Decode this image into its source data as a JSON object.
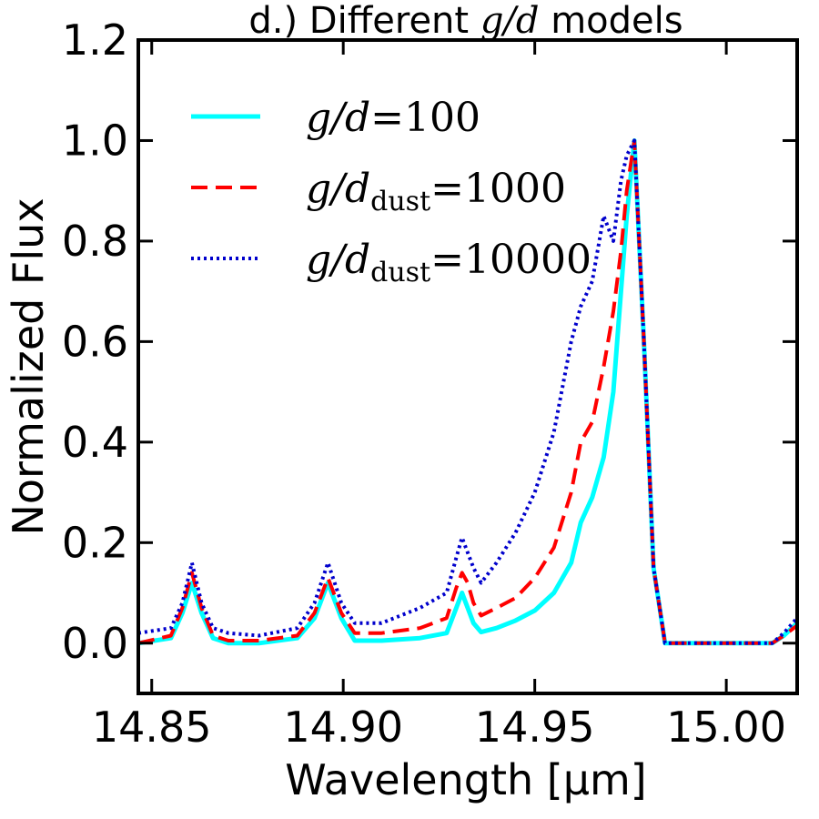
{
  "chart_data": {
    "type": "line",
    "title_prefix": "d.) Different ",
    "title_math": "g/d",
    "title_suffix": " models",
    "xlabel": "Wavelength [μm]",
    "ylabel": "Normalized Flux",
    "xlim": [
      14.8465,
      15.0185
    ],
    "ylim": [
      -0.1,
      1.2
    ],
    "xticks": [
      14.85,
      14.9,
      14.95,
      15.0
    ],
    "xtick_labels": [
      "14.85",
      "14.90",
      "14.95",
      "15.00"
    ],
    "yticks": [
      0.0,
      0.2,
      0.4,
      0.6,
      0.8,
      1.0,
      1.2
    ],
    "ytick_labels": [
      "0.0",
      "0.2",
      "0.4",
      "0.6",
      "0.8",
      "1.0",
      "1.2"
    ],
    "legend_position": "upper-left",
    "series": [
      {
        "name": "g/d = 100",
        "legend_main": "g/d",
        "legend_sub": "",
        "legend_value": "100",
        "color": "#00ffff",
        "style": "solid",
        "x": [
          14.8465,
          14.855,
          14.858,
          14.8605,
          14.863,
          14.866,
          14.87,
          14.878,
          14.888,
          14.8925,
          14.896,
          14.8995,
          14.903,
          14.91,
          14.92,
          14.927,
          14.9295,
          14.931,
          14.9325,
          14.934,
          14.936,
          14.94,
          14.945,
          14.95,
          14.955,
          14.9595,
          14.962,
          14.965,
          14.968,
          14.9705,
          14.9725,
          14.974,
          14.976,
          14.9785,
          14.981,
          14.984,
          14.99,
          15.0,
          15.008,
          15.012,
          15.015,
          15.0185
        ],
        "y": [
          0.0,
          0.01,
          0.06,
          0.12,
          0.06,
          0.01,
          0.0,
          0.0,
          0.01,
          0.05,
          0.12,
          0.05,
          0.005,
          0.005,
          0.01,
          0.02,
          0.07,
          0.1,
          0.07,
          0.04,
          0.022,
          0.03,
          0.045,
          0.065,
          0.1,
          0.16,
          0.24,
          0.29,
          0.37,
          0.5,
          0.7,
          0.85,
          1.0,
          0.6,
          0.15,
          0.0,
          0.0,
          0.0,
          0.0,
          0.0,
          0.015,
          0.04
        ]
      },
      {
        "name": "g/d_dust = 1000",
        "legend_main": "g/d",
        "legend_sub": "dust",
        "legend_value": "1000",
        "color": "#ff0000",
        "style": "dashed",
        "x": [
          14.8465,
          14.855,
          14.858,
          14.8605,
          14.863,
          14.866,
          14.87,
          14.878,
          14.888,
          14.8925,
          14.896,
          14.8995,
          14.903,
          14.91,
          14.92,
          14.927,
          14.9295,
          14.931,
          14.9325,
          14.934,
          14.936,
          14.94,
          14.945,
          14.95,
          14.955,
          14.9595,
          14.962,
          14.965,
          14.968,
          14.9705,
          14.9725,
          14.974,
          14.976,
          14.9785,
          14.981,
          14.984,
          14.99,
          15.0,
          15.008,
          15.012,
          15.015,
          15.0185
        ],
        "y": [
          0.0,
          0.015,
          0.07,
          0.14,
          0.07,
          0.015,
          0.005,
          0.005,
          0.015,
          0.06,
          0.13,
          0.06,
          0.02,
          0.02,
          0.03,
          0.05,
          0.11,
          0.14,
          0.12,
          0.08,
          0.055,
          0.07,
          0.09,
          0.13,
          0.19,
          0.3,
          0.4,
          0.44,
          0.55,
          0.66,
          0.78,
          0.9,
          1.0,
          0.6,
          0.15,
          0.0,
          0.0,
          0.0,
          0.0,
          0.0,
          0.015,
          0.035
        ]
      },
      {
        "name": "g/d_dust = 10000",
        "legend_main": "g/d",
        "legend_sub": "dust",
        "legend_value": "10000",
        "color": "#0000cc",
        "style": "dotted",
        "x": [
          14.8465,
          14.855,
          14.858,
          14.8605,
          14.863,
          14.866,
          14.87,
          14.878,
          14.888,
          14.8925,
          14.896,
          14.8995,
          14.903,
          14.91,
          14.92,
          14.927,
          14.9295,
          14.931,
          14.9325,
          14.934,
          14.936,
          14.94,
          14.945,
          14.95,
          14.955,
          14.9595,
          14.962,
          14.965,
          14.968,
          14.9705,
          14.9725,
          14.974,
          14.976,
          14.9785,
          14.981,
          14.984,
          14.99,
          15.0,
          15.008,
          15.012,
          15.015,
          15.0185
        ],
        "y": [
          0.02,
          0.03,
          0.08,
          0.16,
          0.08,
          0.03,
          0.02,
          0.015,
          0.03,
          0.08,
          0.16,
          0.08,
          0.04,
          0.04,
          0.07,
          0.1,
          0.17,
          0.21,
          0.18,
          0.15,
          0.12,
          0.16,
          0.22,
          0.3,
          0.42,
          0.6,
          0.67,
          0.72,
          0.85,
          0.8,
          0.92,
          0.97,
          1.0,
          0.6,
          0.15,
          0.0,
          0.0,
          0.0,
          0.0,
          0.0,
          0.02,
          0.05
        ]
      }
    ]
  }
}
